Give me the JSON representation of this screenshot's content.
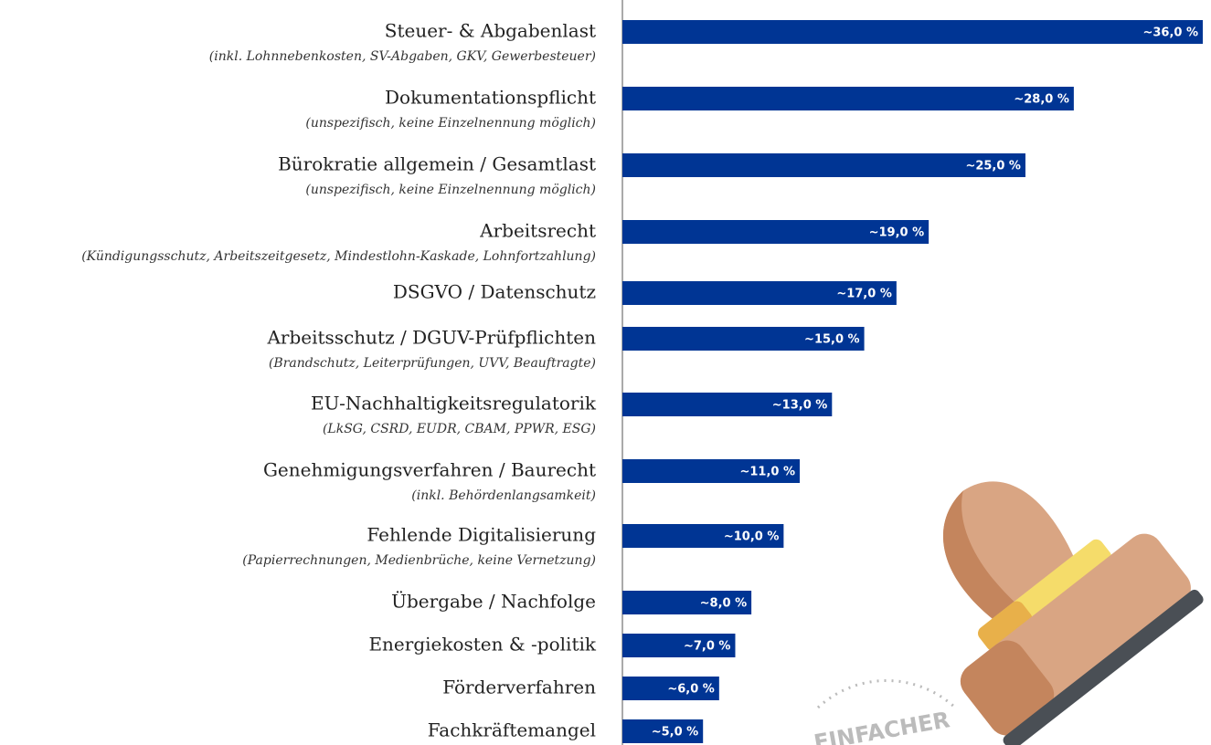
{
  "chart_data": {
    "type": "bar",
    "orientation": "horizontal",
    "categories": [
      "Steuer- & Abgabenlast",
      "Dokumentationspflicht",
      "Bürokratie allgemein / Gesamtlast",
      "Arbeitsrecht",
      "DSGVO / Datenschutz",
      "Arbeitsschutz / DGUV-Prüfpflichten",
      "EU-Nachhaltigkeitsregulatorik",
      "Genehmigungsverfahren / Baurecht",
      "Fehlende Digitalisierung",
      "Übergabe / Nachfolge",
      "Energiekosten & -politik",
      "Förderverfahren",
      "Fachkräftemangel"
    ],
    "category_notes": [
      "(inkl. Lohnnebenkosten, SV-Abgaben, GKV, Gewerbesteuer)",
      "(unspezifisch, keine Einzelnennung möglich)",
      "(unspezifisch, keine Einzelnennung möglich)",
      "(Kündigungsschutz, Arbeitszeitgesetz, Mindestlohn-Kaskade, Lohnfortzahlung)",
      null,
      "(Brandschutz, Leiterprüfungen, UVV, Beauftragte)",
      "(LkSG, CSRD, EUDR, CBAM, PPWR, ESG)",
      "(inkl. Behördenlangsamkeit)",
      "(Papierrechnungen, Medienbrüche, keine Vernetzung)",
      null,
      null,
      null,
      null
    ],
    "values": [
      36,
      28,
      25,
      19,
      17,
      15,
      13,
      11,
      10,
      8,
      7,
      6,
      5
    ],
    "value_labels": [
      "~36,0 %",
      "~28,0 %",
      "~25,0 %",
      "~19,0 %",
      "~17,0 %",
      "~15,0 %",
      "~13,0 %",
      "~11,0 %",
      "~10,0 %",
      "~8,0 %",
      "~7,0 %",
      "~6,0 %",
      "~5,0 %"
    ],
    "color": "#003594",
    "xlim": [
      0,
      36
    ],
    "stamp_text": "EINFACHER"
  }
}
